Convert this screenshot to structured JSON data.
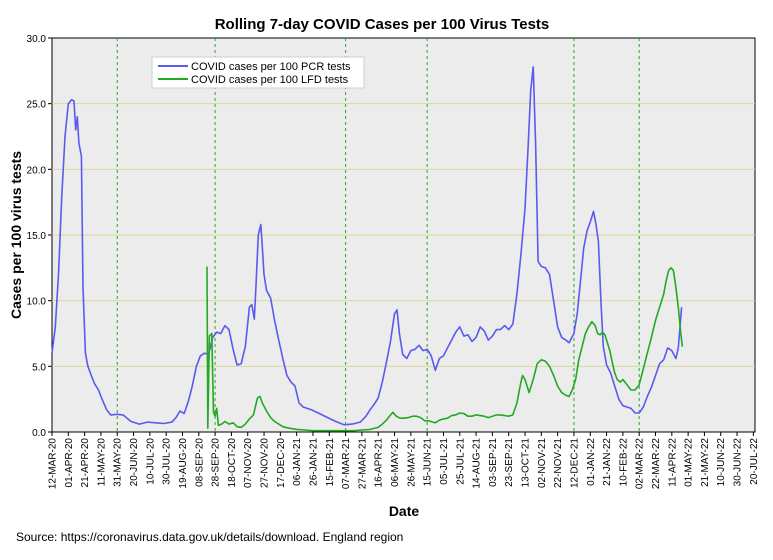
{
  "chart_data": {
    "type": "line",
    "title": "Rolling 7-day COVID Cases per 100 Virus Tests",
    "xlabel": "Date",
    "ylabel": "Cases per 100 virus tests",
    "ylim": [
      0,
      30
    ],
    "yticks": [
      "0.0",
      "5.0",
      "10.0",
      "15.0",
      "20.0",
      "25.0",
      "30.0"
    ],
    "grid": "horizontal",
    "legend_position": "top-left",
    "x_ticks": [
      "12-MAR-20",
      "01-APR-20",
      "21-APR-20",
      "11-MAY-20",
      "31-MAY-20",
      "20-JUN-20",
      "10-JUL-20",
      "30-JUL-20",
      "19-AUG-20",
      "08-SEP-20",
      "28-SEP-20",
      "18-OCT-20",
      "07-NOV-20",
      "27-NOV-20",
      "17-DEC-20",
      "06-JAN-21",
      "26-JAN-21",
      "15-FEB-21",
      "07-MAR-21",
      "27-MAR-21",
      "16-APR-21",
      "06-MAY-21",
      "26-MAY-21",
      "15-JUN-21",
      "05-JUL-21",
      "25-JUL-21",
      "14-AUG-21",
      "03-SEP-21",
      "23-SEP-21",
      "13-OCT-21",
      "02-NOV-21",
      "22-NOV-21",
      "12-DEC-21",
      "01-JAN-22",
      "21-JAN-22",
      "10-FEB-22",
      "02-MAR-22",
      "22-MAR-22",
      "11-APR-22",
      "01-MAY-22",
      "21-MAY-22",
      "10-JUN-22",
      "30-JUN-22",
      "20-JUL-22"
    ],
    "reference_lines": [
      "31-MAY-20",
      "28-SEP-20",
      "07-MAR-21",
      "15-JUN-21",
      "12-DEC-21",
      "02-MAR-22"
    ],
    "x_unit": "days since 12-MAR-20",
    "x_max": 862,
    "series": [
      {
        "name": "COVID cases per 100 PCR tests",
        "color": "#5a5af0",
        "points": [
          [
            0,
            6
          ],
          [
            4,
            8
          ],
          [
            8,
            12
          ],
          [
            12,
            18
          ],
          [
            16,
            22.5
          ],
          [
            20,
            25
          ],
          [
            24,
            25.3
          ],
          [
            27,
            25.2
          ],
          [
            29,
            23
          ],
          [
            31,
            24
          ],
          [
            33,
            22
          ],
          [
            36,
            21
          ],
          [
            38,
            11
          ],
          [
            41,
            6
          ],
          [
            44,
            5
          ],
          [
            47,
            4.5
          ],
          [
            52,
            3.7
          ],
          [
            57,
            3.2
          ],
          [
            62,
            2.4
          ],
          [
            67,
            1.7
          ],
          [
            72,
            1.3
          ],
          [
            80,
            1.35
          ],
          [
            87,
            1.3
          ],
          [
            97,
            0.8
          ],
          [
            107,
            0.6
          ],
          [
            117,
            0.75
          ],
          [
            127,
            0.7
          ],
          [
            137,
            0.65
          ],
          [
            147,
            0.75
          ],
          [
            152,
            1.1
          ],
          [
            157,
            1.6
          ],
          [
            162,
            1.4
          ],
          [
            167,
            2.3
          ],
          [
            172,
            3.5
          ],
          [
            177,
            5
          ],
          [
            182,
            5.8
          ],
          [
            187,
            6
          ],
          [
            192,
            5.9
          ],
          [
            197,
            7.2
          ],
          [
            202,
            7.6
          ],
          [
            207,
            7.5
          ],
          [
            212,
            8.1
          ],
          [
            217,
            7.8
          ],
          [
            222,
            6.3
          ],
          [
            227,
            5.1
          ],
          [
            232,
            5.2
          ],
          [
            237,
            6.5
          ],
          [
            242,
            9.5
          ],
          [
            245,
            9.7
          ],
          [
            248,
            8.6
          ],
          [
            250,
            11
          ],
          [
            253,
            15
          ],
          [
            256,
            15.8
          ],
          [
            258,
            14
          ],
          [
            260,
            12
          ],
          [
            263,
            10.8
          ],
          [
            268,
            10.2
          ],
          [
            273,
            8.5
          ],
          [
            278,
            7
          ],
          [
            283,
            5.6
          ],
          [
            288,
            4.3
          ],
          [
            293,
            3.8
          ],
          [
            298,
            3.5
          ],
          [
            303,
            2.2
          ],
          [
            308,
            1.9
          ],
          [
            318,
            1.7
          ],
          [
            328,
            1.4
          ],
          [
            338,
            1.1
          ],
          [
            348,
            0.8
          ],
          [
            358,
            0.55
          ],
          [
            368,
            0.6
          ],
          [
            378,
            0.75
          ],
          [
            385,
            1.2
          ],
          [
            390,
            1.7
          ],
          [
            395,
            2.1
          ],
          [
            400,
            2.6
          ],
          [
            405,
            3.8
          ],
          [
            410,
            5.3
          ],
          [
            415,
            6.9
          ],
          [
            420,
            9
          ],
          [
            423,
            9.3
          ],
          [
            426,
            7.5
          ],
          [
            430,
            5.9
          ],
          [
            435,
            5.6
          ],
          [
            440,
            6.2
          ],
          [
            445,
            6.3
          ],
          [
            450,
            6.6
          ],
          [
            455,
            6.2
          ],
          [
            460,
            6.3
          ],
          [
            465,
            5.8
          ],
          [
            470,
            4.7
          ],
          [
            475,
            5.6
          ],
          [
            480,
            5.8
          ],
          [
            485,
            6.4
          ],
          [
            490,
            7
          ],
          [
            495,
            7.6
          ],
          [
            500,
            8
          ],
          [
            505,
            7.3
          ],
          [
            510,
            7.4
          ],
          [
            515,
            6.9
          ],
          [
            520,
            7.2
          ],
          [
            525,
            8
          ],
          [
            530,
            7.7
          ],
          [
            535,
            7
          ],
          [
            540,
            7.3
          ],
          [
            545,
            7.8
          ],
          [
            550,
            7.8
          ],
          [
            555,
            8.1
          ],
          [
            560,
            7.8
          ],
          [
            565,
            8.2
          ],
          [
            570,
            10.5
          ],
          [
            575,
            13.5
          ],
          [
            580,
            17
          ],
          [
            584,
            22
          ],
          [
            587,
            26
          ],
          [
            590,
            27.8
          ],
          [
            593,
            22
          ],
          [
            596,
            13
          ],
          [
            600,
            12.6
          ],
          [
            605,
            12.5
          ],
          [
            610,
            12
          ],
          [
            615,
            10
          ],
          [
            620,
            8
          ],
          [
            625,
            7.2
          ],
          [
            630,
            7
          ],
          [
            634,
            6.8
          ],
          [
            640,
            7.5
          ],
          [
            644,
            9
          ],
          [
            648,
            11.5
          ],
          [
            652,
            14
          ],
          [
            656,
            15.3
          ],
          [
            660,
            16
          ],
          [
            664,
            16.8
          ],
          [
            667,
            15.8
          ],
          [
            670,
            14.5
          ],
          [
            673,
            10
          ],
          [
            676,
            6.5
          ],
          [
            680,
            5.1
          ],
          [
            685,
            4.5
          ],
          [
            690,
            3.5
          ],
          [
            695,
            2.5
          ],
          [
            700,
            2
          ],
          [
            705,
            1.9
          ],
          [
            710,
            1.8
          ],
          [
            715,
            1.45
          ],
          [
            720,
            1.45
          ],
          [
            725,
            1.9
          ],
          [
            730,
            2.7
          ],
          [
            735,
            3.4
          ],
          [
            740,
            4.3
          ],
          [
            745,
            5.2
          ],
          [
            750,
            5.5
          ],
          [
            755,
            6.4
          ],
          [
            760,
            6.2
          ],
          [
            765,
            5.6
          ],
          [
            768,
            6.4
          ],
          [
            772,
            9.5
          ]
        ]
      },
      {
        "name": "COVID cases per 100 LFD tests",
        "color": "#22aa22",
        "points": [
          [
            190,
            12.6
          ],
          [
            191,
            0.3
          ],
          [
            193,
            7.3
          ],
          [
            196,
            7.5
          ],
          [
            198,
            1.5
          ],
          [
            200,
            1.2
          ],
          [
            202,
            1.8
          ],
          [
            204,
            0.5
          ],
          [
            208,
            0.6
          ],
          [
            212,
            0.8
          ],
          [
            217,
            0.6
          ],
          [
            222,
            0.7
          ],
          [
            227,
            0.4
          ],
          [
            232,
            0.35
          ],
          [
            237,
            0.6
          ],
          [
            242,
            1
          ],
          [
            247,
            1.3
          ],
          [
            252,
            2.6
          ],
          [
            255,
            2.7
          ],
          [
            258,
            2.2
          ],
          [
            263,
            1.6
          ],
          [
            268,
            1.1
          ],
          [
            273,
            0.8
          ],
          [
            278,
            0.6
          ],
          [
            283,
            0.4
          ],
          [
            290,
            0.3
          ],
          [
            300,
            0.2
          ],
          [
            310,
            0.15
          ],
          [
            320,
            0.1
          ],
          [
            330,
            0.1
          ],
          [
            340,
            0.1
          ],
          [
            350,
            0.1
          ],
          [
            360,
            0.1
          ],
          [
            370,
            0.1
          ],
          [
            380,
            0.15
          ],
          [
            390,
            0.2
          ],
          [
            400,
            0.35
          ],
          [
            405,
            0.6
          ],
          [
            410,
            0.9
          ],
          [
            415,
            1.3
          ],
          [
            418,
            1.5
          ],
          [
            422,
            1.2
          ],
          [
            427,
            1.05
          ],
          [
            432,
            1.05
          ],
          [
            437,
            1.1
          ],
          [
            442,
            1.2
          ],
          [
            447,
            1.2
          ],
          [
            452,
            1.1
          ],
          [
            457,
            0.85
          ],
          [
            462,
            0.85
          ],
          [
            467,
            0.75
          ],
          [
            470,
            0.7
          ],
          [
            475,
            0.9
          ],
          [
            480,
            1
          ],
          [
            485,
            1.05
          ],
          [
            490,
            1.25
          ],
          [
            495,
            1.3
          ],
          [
            500,
            1.45
          ],
          [
            505,
            1.4
          ],
          [
            510,
            1.2
          ],
          [
            515,
            1.2
          ],
          [
            520,
            1.3
          ],
          [
            525,
            1.25
          ],
          [
            530,
            1.2
          ],
          [
            535,
            1.1
          ],
          [
            540,
            1.2
          ],
          [
            545,
            1.3
          ],
          [
            550,
            1.3
          ],
          [
            555,
            1.25
          ],
          [
            560,
            1.2
          ],
          [
            565,
            1.3
          ],
          [
            570,
            2.2
          ],
          [
            575,
            3.8
          ],
          [
            577,
            4.3
          ],
          [
            580,
            4
          ],
          [
            585,
            3
          ],
          [
            590,
            4
          ],
          [
            595,
            5.2
          ],
          [
            600,
            5.5
          ],
          [
            605,
            5.4
          ],
          [
            610,
            5
          ],
          [
            615,
            4.3
          ],
          [
            620,
            3.5
          ],
          [
            625,
            3
          ],
          [
            630,
            2.8
          ],
          [
            634,
            2.7
          ],
          [
            638,
            3.2
          ],
          [
            642,
            4
          ],
          [
            646,
            5.5
          ],
          [
            650,
            6.5
          ],
          [
            654,
            7.5
          ],
          [
            658,
            8
          ],
          [
            662,
            8.4
          ],
          [
            666,
            8.1
          ],
          [
            669,
            7.5
          ],
          [
            672,
            7.4
          ],
          [
            675,
            7.6
          ],
          [
            678,
            7.4
          ],
          [
            681,
            6.8
          ],
          [
            684,
            6.2
          ],
          [
            687,
            5.3
          ],
          [
            690,
            4.5
          ],
          [
            693,
            4
          ],
          [
            697,
            3.8
          ],
          [
            700,
            4
          ],
          [
            705,
            3.6
          ],
          [
            710,
            3.2
          ],
          [
            715,
            3.2
          ],
          [
            720,
            3.6
          ],
          [
            725,
            4.8
          ],
          [
            730,
            6
          ],
          [
            735,
            7.2
          ],
          [
            740,
            8.5
          ],
          [
            745,
            9.5
          ],
          [
            750,
            10.5
          ],
          [
            753,
            11.5
          ],
          [
            756,
            12.3
          ],
          [
            759,
            12.5
          ],
          [
            762,
            12.3
          ],
          [
            765,
            11
          ],
          [
            768,
            9.5
          ],
          [
            771,
            7.5
          ],
          [
            773,
            6.5
          ]
        ]
      }
    ]
  },
  "footer": {
    "source": "Source: https://coronavirus.data.gov.uk/details/download. England region"
  }
}
